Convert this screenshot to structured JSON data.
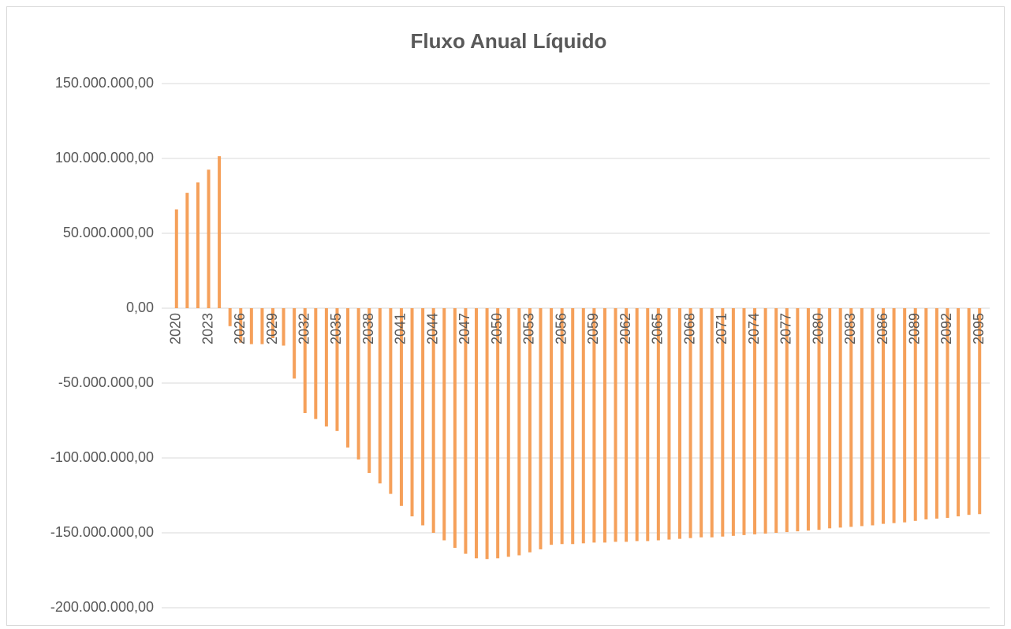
{
  "chart_data": {
    "type": "bar",
    "title": "Fluxo Anual Líquido",
    "categories": [
      "2020",
      null,
      null,
      "2023",
      null,
      null,
      "2026",
      null,
      null,
      "2029",
      null,
      null,
      "2032",
      null,
      null,
      "2035",
      null,
      null,
      "2038",
      null,
      null,
      "2041",
      null,
      null,
      "2044",
      null,
      null,
      "2047",
      null,
      null,
      "2050",
      null,
      null,
      "2053",
      null,
      null,
      "2056",
      null,
      null,
      "2059",
      null,
      null,
      "2062",
      null,
      null,
      "2065",
      null,
      null,
      "2068",
      null,
      null,
      "2071",
      null,
      null,
      "2074",
      null,
      null,
      "2077",
      null,
      null,
      "2080",
      null,
      null,
      "2083",
      null,
      null,
      "2086",
      null,
      null,
      "2089",
      null,
      null,
      "2092",
      null,
      null,
      "2095"
    ],
    "values": [
      66000000,
      77000000,
      84000000,
      92500000,
      101500000,
      -12000000,
      -23000000,
      -24000000,
      -24000000,
      -20000000,
      -25000000,
      -47000000,
      -70000000,
      -74000000,
      -79000000,
      -82000000,
      -93000000,
      -101000000,
      -110000000,
      -117000000,
      -124000000,
      -132000000,
      -139000000,
      -145000000,
      -150000000,
      -155000000,
      -160000000,
      -164000000,
      -167000000,
      -167500000,
      -167000000,
      -166000000,
      -165000000,
      -163000000,
      -161000000,
      -158000000,
      -157500000,
      -157500000,
      -157000000,
      -156500000,
      -156500000,
      -156000000,
      -156000000,
      -155500000,
      -155500000,
      -155000000,
      -154500000,
      -154000000,
      -153500000,
      -153000000,
      -153000000,
      -152500000,
      -152000000,
      -151500000,
      -151000000,
      -150500000,
      -150000000,
      -149500000,
      -149000000,
      -148500000,
      -148000000,
      -147000000,
      -146500000,
      -146000000,
      -145500000,
      -145000000,
      -144000000,
      -143500000,
      -143000000,
      -142000000,
      -141000000,
      -140500000,
      -140000000,
      -139000000,
      -138000000,
      -137500000
    ],
    "color": "#f5a05a",
    "ylim": [
      -200000000,
      150000000
    ],
    "yticks": [
      {
        "value": -200000000,
        "label": "-200.000.000,00"
      },
      {
        "value": -150000000,
        "label": "-150.000.000,00"
      },
      {
        "value": -100000000,
        "label": "-100.000.000,00"
      },
      {
        "value": -50000000,
        "label": "-50.000.000,00"
      },
      {
        "value": 0,
        "label": "0,00"
      },
      {
        "value": 50000000,
        "label": "50.000.000,00"
      },
      {
        "value": 100000000,
        "label": "100.000.000,00"
      },
      {
        "value": 150000000,
        "label": "150.000.000,00"
      }
    ],
    "grid": true
  }
}
